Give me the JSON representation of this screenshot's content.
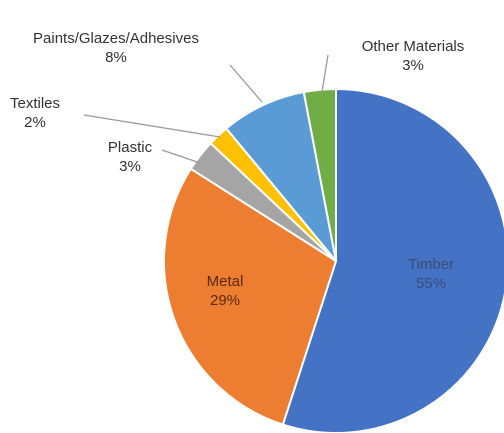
{
  "chart_data": {
    "type": "pie",
    "slices": [
      {
        "label": "Timber",
        "percent_label": "55%",
        "value": 55,
        "color": "#4472C4",
        "label_color": "#3b4c7a"
      },
      {
        "label": "Metal",
        "percent_label": "29%",
        "value": 29,
        "color": "#ED7D31",
        "label_color": "#5a2a10"
      },
      {
        "label": "Plastic",
        "percent_label": "3%",
        "value": 3,
        "color": "#A5A5A5",
        "label_color": "#333333"
      },
      {
        "label": "Textiles",
        "percent_label": "2%",
        "value": 2,
        "color": "#FFC000",
        "label_color": "#333333"
      },
      {
        "label": "Paints/Glazes/Adhesives",
        "percent_label": "8%",
        "value": 8,
        "color": "#5B9BD5",
        "label_color": "#333333"
      },
      {
        "label": "Other Materials",
        "percent_label": "3%",
        "value": 3,
        "color": "#70AD47",
        "label_color": "#333333"
      }
    ]
  }
}
